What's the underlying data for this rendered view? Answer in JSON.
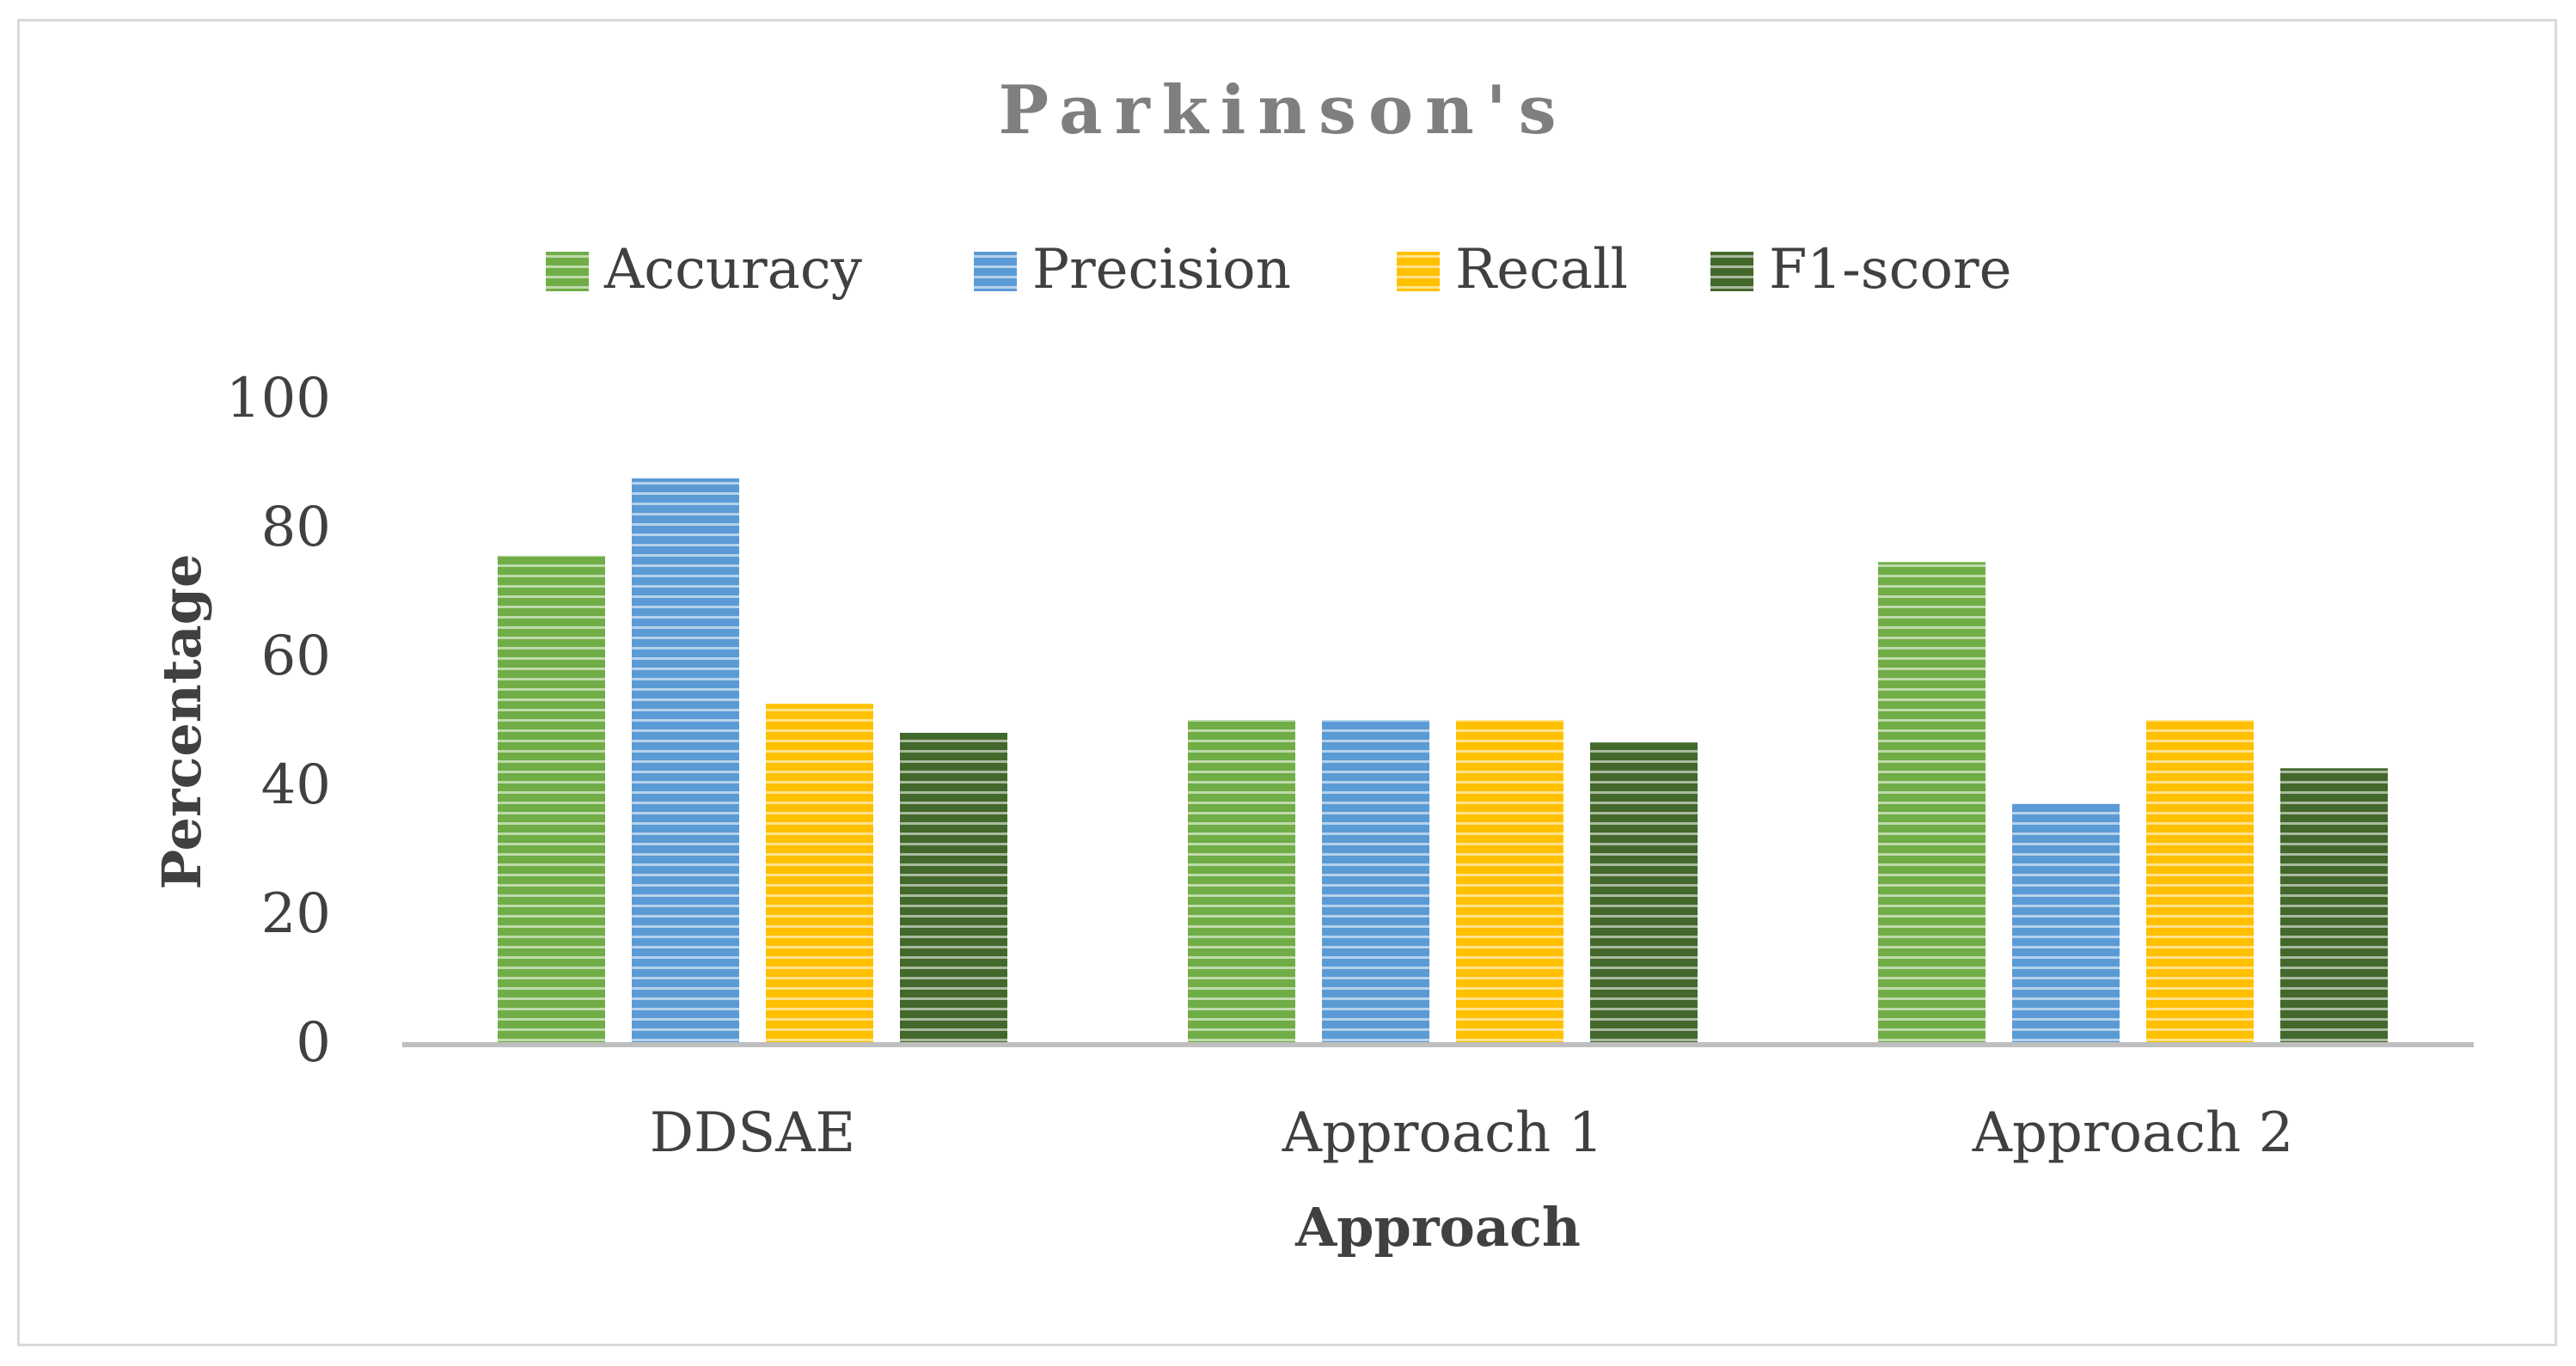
{
  "chart_data": {
    "type": "bar",
    "title": "Parkinson's",
    "xlabel": "Approach",
    "ylabel": "Percentage",
    "ylim": [
      0,
      100
    ],
    "yticks": [
      0,
      20,
      40,
      60,
      80,
      100
    ],
    "grid": false,
    "legend_position": "top",
    "categories": [
      "DDSAE",
      "Approach 1",
      "Approach 2"
    ],
    "series": [
      {
        "name": "Accuracy",
        "color": "#70ad47",
        "values": [
          75.5,
          50,
          74.5
        ]
      },
      {
        "name": "Precision",
        "color": "#5b9bd5",
        "values": [
          87.5,
          50,
          37
        ]
      },
      {
        "name": "Recall",
        "color": "#ffc000",
        "values": [
          52.5,
          50,
          50
        ]
      },
      {
        "name": "F1-score",
        "color": "#43682b",
        "values": [
          48,
          46.5,
          42.5
        ]
      }
    ]
  }
}
